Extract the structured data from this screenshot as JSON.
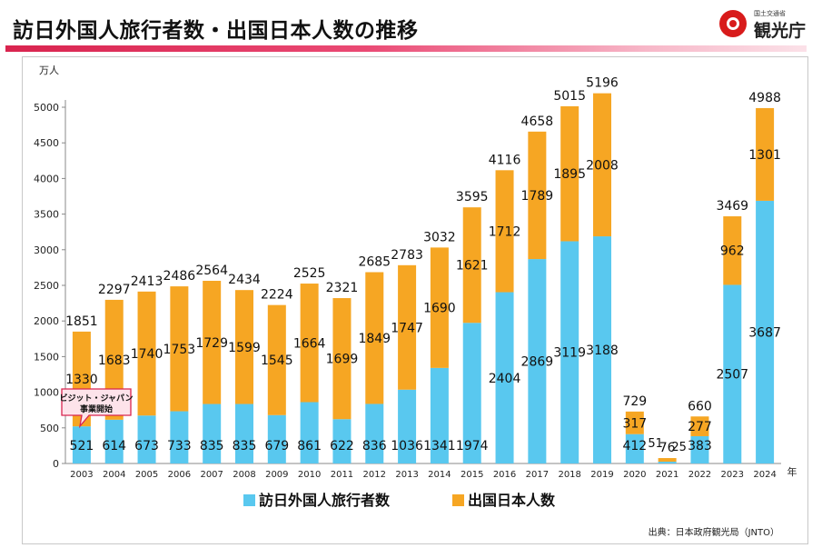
{
  "header": {
    "title": "訪日外国人旅行者数・出国日本人数の推移",
    "logo_ministry": "国土交通省",
    "logo_agency": "観光庁"
  },
  "colors": {
    "visitors": "#59c8ef",
    "outbound": "#f6a623",
    "title_rule": "#d9244f",
    "callout_border": "#d9244f",
    "callout_fill": "#fde3ea"
  },
  "chart_data": {
    "type": "bar",
    "stacked": true,
    "ylabel": "万人",
    "xlabel": "年",
    "ylim": [
      0,
      5000
    ],
    "yticks": [
      0,
      500,
      1000,
      1500,
      2000,
      2500,
      3000,
      3500,
      4000,
      4500,
      5000
    ],
    "grid": false,
    "legend_position": "bottom",
    "categories": [
      "2003",
      "2004",
      "2005",
      "2006",
      "2007",
      "2008",
      "2009",
      "2010",
      "2011",
      "2012",
      "2013",
      "2014",
      "2015",
      "2016",
      "2017",
      "2018",
      "2019",
      "2020",
      "2021",
      "2022",
      "2023",
      "2024"
    ],
    "series": [
      {
        "name": "訪日外国人旅行者数",
        "values": [
          521,
          614,
          673,
          733,
          835,
          835,
          679,
          861,
          622,
          836,
          1036,
          1341,
          1974,
          2404,
          2869,
          3119,
          3188,
          412,
          25,
          383,
          2507,
          3687
        ]
      },
      {
        "name": "出国日本人数",
        "values": [
          1330,
          1683,
          1740,
          1753,
          1729,
          1599,
          1545,
          1664,
          1699,
          1849,
          1747,
          1690,
          1621,
          1712,
          1789,
          1895,
          2008,
          317,
          51,
          277,
          962,
          1301
        ]
      }
    ],
    "totals": [
      1851,
      2297,
      2413,
      2486,
      2564,
      2434,
      2224,
      2525,
      2321,
      2685,
      2783,
      3032,
      3595,
      4116,
      4658,
      5015,
      5196,
      729,
      76,
      660,
      3469,
      4988
    ],
    "annotation": {
      "category": "2003",
      "lines": [
        "ビジット・ジャパン",
        "事業開始"
      ]
    }
  },
  "footer": {
    "source": "出典：日本政府観光局（JNTO）"
  }
}
